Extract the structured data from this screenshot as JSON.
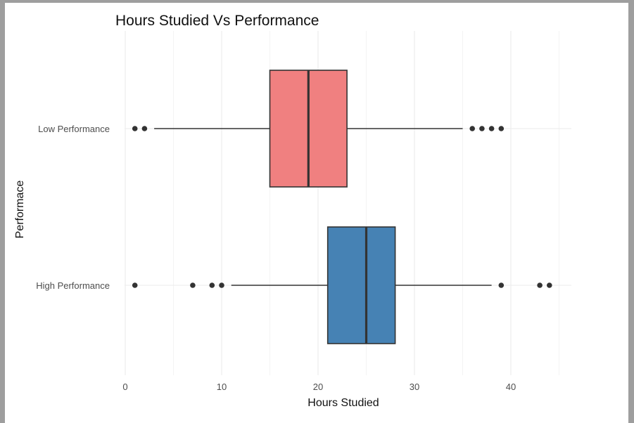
{
  "chart_data": {
    "type": "boxplot",
    "title": "Hours Studied Vs Performance",
    "xlabel": "Hours Studied",
    "ylabel": "Performace",
    "xlim": [
      -1,
      47
    ],
    "xticks": [
      0,
      10,
      20,
      30,
      40
    ],
    "grid": true,
    "orientation": "horizontal",
    "categories": [
      "Low Performance",
      "High Performance"
    ],
    "series": [
      {
        "category": "Low Performance",
        "color": "#F08080",
        "whisker_low": 3,
        "q1": 15,
        "median": 19,
        "q3": 23,
        "whisker_high": 35,
        "outliers": [
          1,
          2,
          36,
          37,
          38,
          39
        ]
      },
      {
        "category": "High Performance",
        "color": "#4682B4",
        "whisker_low": 11,
        "q1": 21,
        "median": 25,
        "q3": 28,
        "whisker_high": 38,
        "outliers": [
          1,
          7,
          9,
          10,
          39,
          43,
          44
        ]
      }
    ]
  }
}
